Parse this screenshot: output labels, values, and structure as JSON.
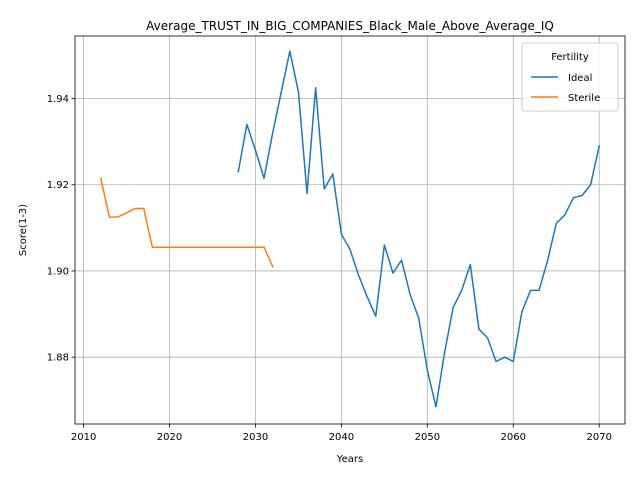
{
  "chart_data": {
    "type": "line",
    "title": "Average_TRUST_IN_BIG_COMPANIES_Black_Male_Above_Average_IQ",
    "xlabel": "Years",
    "ylabel": "Score(1-3)",
    "xlim": [
      2009,
      2073
    ],
    "ylim": [
      1.8645,
      1.9545
    ],
    "xticks": [
      2010,
      2020,
      2030,
      2040,
      2050,
      2060,
      2070
    ],
    "yticks": [
      1.88,
      1.9,
      1.92,
      1.94
    ],
    "ytick_labels": [
      "1.88",
      "1.90",
      "1.92",
      "1.94"
    ],
    "grid": true,
    "legend": {
      "title": "Fertility",
      "placement": "top-right"
    },
    "series": [
      {
        "name": "Ideal",
        "color": "#1f77b4",
        "x": [
          2028,
          2029,
          2030,
          2031,
          2032,
          2033,
          2034,
          2035,
          2036,
          2037,
          2038,
          2039,
          2040,
          2041,
          2042,
          2043,
          2044,
          2045,
          2046,
          2047,
          2048,
          2049,
          2050,
          2051,
          2052,
          2053,
          2054,
          2055,
          2056,
          2057,
          2058,
          2059,
          2060,
          2061,
          2062,
          2063,
          2064,
          2065,
          2066,
          2067,
          2068,
          2069,
          2070
        ],
        "y": [
          1.923,
          1.934,
          1.928,
          1.9215,
          1.932,
          1.9415,
          1.951,
          1.9415,
          1.918,
          1.9425,
          1.919,
          1.9225,
          1.9085,
          1.905,
          1.899,
          1.894,
          1.8895,
          1.906,
          1.8995,
          1.9025,
          1.8945,
          1.889,
          1.877,
          1.8685,
          1.881,
          1.8915,
          1.8955,
          1.9015,
          1.8865,
          1.8845,
          1.879,
          1.88,
          1.879,
          1.8905,
          1.8955,
          1.8955,
          1.9025,
          1.911,
          1.913,
          1.917,
          1.9175,
          1.92,
          1.929
        ]
      },
      {
        "name": "Sterile",
        "color": "#ff7f0e",
        "x": [
          2012,
          2013,
          2014,
          2015,
          2016,
          2017,
          2018,
          2019,
          2020,
          2021,
          2022,
          2023,
          2024,
          2025,
          2026,
          2027,
          2028,
          2029,
          2030,
          2031,
          2032
        ],
        "y": [
          1.9215,
          1.9125,
          1.9125,
          1.9135,
          1.9145,
          1.9145,
          1.9055,
          1.9055,
          1.9055,
          1.9055,
          1.9055,
          1.9055,
          1.9055,
          1.9055,
          1.9055,
          1.9055,
          1.9055,
          1.9055,
          1.9055,
          1.9055,
          1.901
        ]
      }
    ]
  }
}
